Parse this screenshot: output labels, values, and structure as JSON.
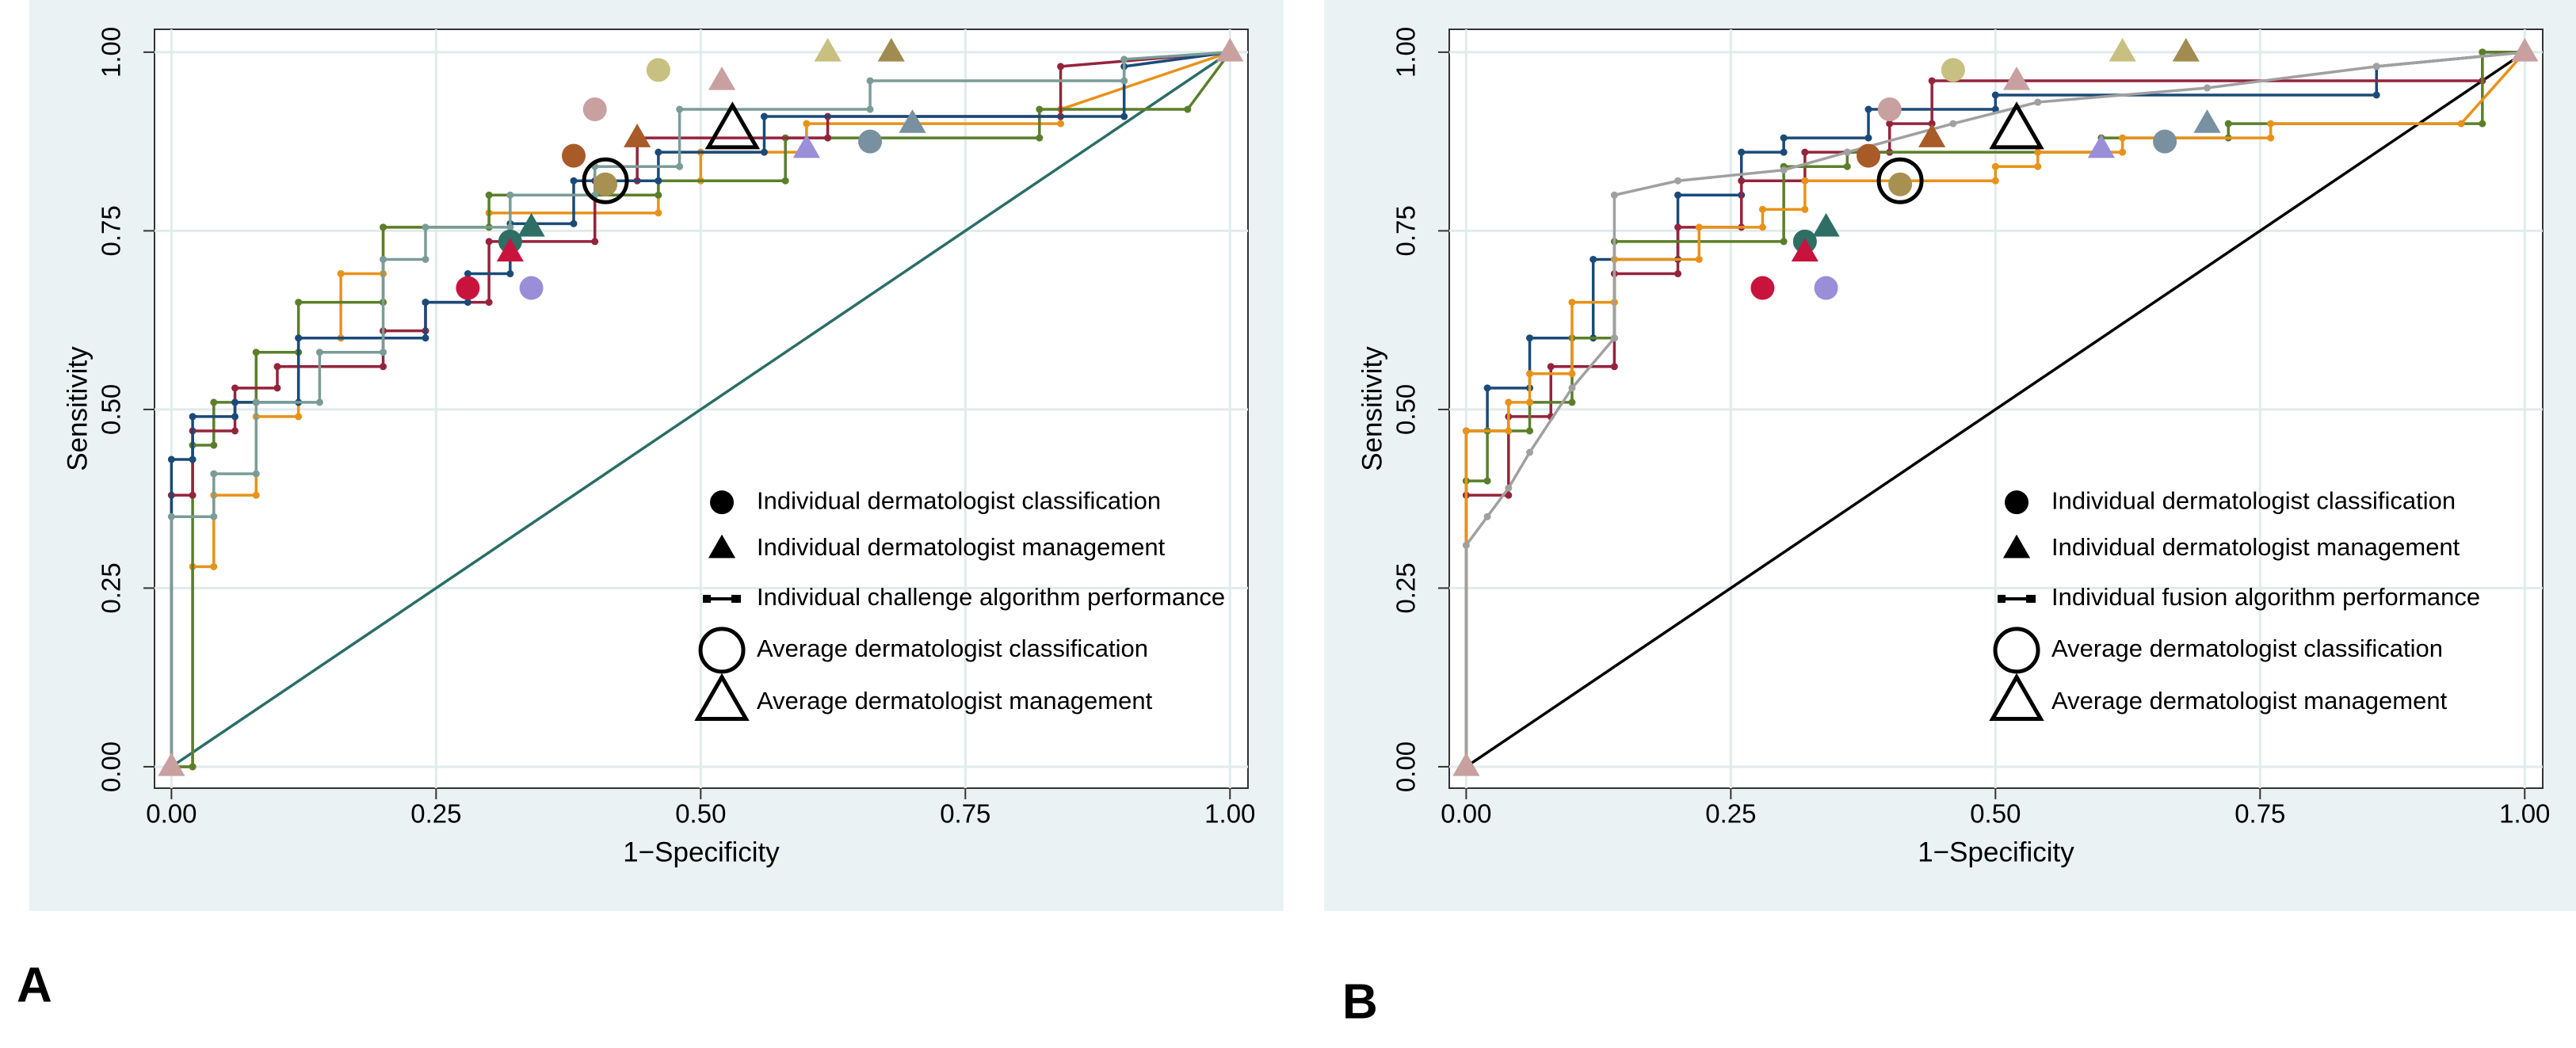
{
  "chart_data": [
    {
      "type": "line",
      "panel_label": "A",
      "xlabel": "1−Specificity",
      "ylabel": "Sensitivity",
      "grid": true,
      "xlim": [
        -0.016,
        1.017
      ],
      "ylim": [
        -0.03,
        1.032
      ],
      "xticks": [
        {
          "value": 0,
          "label": "0.00"
        },
        {
          "value": 0.25,
          "label": "0.25"
        },
        {
          "value": 0.5,
          "label": "0.50"
        },
        {
          "value": 0.75,
          "label": "0.75"
        },
        {
          "value": 1,
          "label": "1.00"
        }
      ],
      "yticks": [
        {
          "value": 0,
          "label": "0.00"
        },
        {
          "value": 0.25,
          "label": "0.25"
        },
        {
          "value": 0.5,
          "label": "0.50"
        },
        {
          "value": 0.75,
          "label": "0.75"
        },
        {
          "value": 1,
          "label": "1.00"
        }
      ],
      "reference_line": {
        "color": "#2a6e66",
        "x": [
          0,
          1
        ],
        "values": [
          0,
          1
        ]
      },
      "series": [
        {
          "color": "#e8921a",
          "x": [
            0,
            0.02,
            0.02,
            0.04,
            0.04,
            0.08,
            0.08,
            0.12,
            0.12,
            0.16,
            0.16,
            0.2,
            0.2,
            0.3,
            0.3,
            0.46,
            0.46,
            0.5,
            0.5,
            0.6,
            0.6,
            0.84,
            0.84,
            1
          ],
          "values": [
            0,
            0,
            0.28,
            0.28,
            0.38,
            0.38,
            0.49,
            0.49,
            0.6,
            0.6,
            0.69,
            0.69,
            0.755,
            0.755,
            0.775,
            0.775,
            0.82,
            0.82,
            0.86,
            0.86,
            0.9,
            0.9,
            0.92,
            1
          ]
        },
        {
          "color": "#5a7f2b",
          "x": [
            0,
            0.02,
            0.02,
            0.04,
            0.04,
            0.08,
            0.08,
            0.12,
            0.12,
            0.2,
            0.2,
            0.3,
            0.3,
            0.46,
            0.46,
            0.58,
            0.58,
            0.82,
            0.82,
            0.96,
            1
          ],
          "values": [
            0,
            0,
            0.45,
            0.45,
            0.51,
            0.51,
            0.58,
            0.58,
            0.65,
            0.65,
            0.755,
            0.755,
            0.8,
            0.8,
            0.82,
            0.82,
            0.88,
            0.88,
            0.92,
            0.92,
            1
          ]
        },
        {
          "color": "#94243c",
          "x": [
            0,
            0,
            0.02,
            0.02,
            0.06,
            0.06,
            0.1,
            0.1,
            0.2,
            0.2,
            0.24,
            0.24,
            0.3,
            0.3,
            0.4,
            0.4,
            0.44,
            0.44,
            0.62,
            0.62,
            0.84,
            0.84,
            1
          ],
          "values": [
            0,
            0.38,
            0.38,
            0.47,
            0.47,
            0.53,
            0.53,
            0.56,
            0.56,
            0.61,
            0.61,
            0.65,
            0.65,
            0.735,
            0.735,
            0.82,
            0.82,
            0.88,
            0.88,
            0.91,
            0.91,
            0.98,
            1
          ]
        },
        {
          "color": "#1a4a78",
          "x": [
            0,
            0,
            0.02,
            0.02,
            0.06,
            0.06,
            0.12,
            0.12,
            0.24,
            0.24,
            0.28,
            0.28,
            0.32,
            0.32,
            0.38,
            0.38,
            0.46,
            0.46,
            0.56,
            0.56,
            0.9,
            0.9,
            1
          ],
          "values": [
            0,
            0.43,
            0.43,
            0.49,
            0.49,
            0.51,
            0.51,
            0.6,
            0.6,
            0.65,
            0.65,
            0.69,
            0.69,
            0.76,
            0.76,
            0.82,
            0.82,
            0.86,
            0.86,
            0.91,
            0.91,
            0.98,
            1
          ]
        },
        {
          "color": "#7a9c98",
          "x": [
            0,
            0,
            0.04,
            0.04,
            0.08,
            0.08,
            0.14,
            0.14,
            0.2,
            0.2,
            0.24,
            0.24,
            0.32,
            0.32,
            0.4,
            0.4,
            0.48,
            0.48,
            0.66,
            0.66,
            0.9,
            0.9,
            1
          ],
          "values": [
            0,
            0.35,
            0.35,
            0.41,
            0.41,
            0.51,
            0.51,
            0.58,
            0.58,
            0.71,
            0.71,
            0.755,
            0.755,
            0.8,
            0.8,
            0.84,
            0.84,
            0.92,
            0.92,
            0.96,
            0.96,
            0.99,
            1
          ]
        }
      ],
      "markers": {
        "x": [
          0.28,
          0.32,
          0.34,
          0.38,
          0.4,
          0.41,
          0.46,
          0.66,
          0.32,
          0.34,
          0.44,
          0.52,
          0.6,
          0.62,
          0.68,
          0.7,
          0,
          1
        ],
        "values": [
          0.67,
          0.735,
          0.67,
          0.855,
          0.92,
          0.815,
          0.975,
          0.875,
          0.72,
          0.755,
          0.88,
          0.96,
          0.865,
          1,
          1,
          0.9,
          0,
          1
        ],
        "shapes": [
          "circle",
          "circle",
          "circle",
          "circle",
          "circle",
          "circle",
          "circle",
          "circle",
          "triangle",
          "triangle",
          "triangle",
          "triangle",
          "triangle",
          "triangle",
          "triangle",
          "triangle",
          "triangle",
          "triangle"
        ],
        "colors": [
          "#c8143c",
          "#2e6e64",
          "#9a8ed8",
          "#a85a28",
          "#c8a0a0",
          "#a89050",
          "#c8c080",
          "#7890a0",
          "#c8143c",
          "#2e6e64",
          "#a85a28",
          "#c8a0a0",
          "#9a8ed8",
          "#c8c080",
          "#a08c50",
          "#7890a0",
          "#c8a0a0",
          "#c8a0a0"
        ]
      },
      "average_markers": {
        "x": [
          0.41,
          0.53
        ],
        "values": [
          0.82,
          0.89
        ],
        "shapes": [
          "open-circle",
          "open-triangle"
        ]
      },
      "legend": {
        "labels": [
          "Individual dermatologist classification",
          "Individual dermatologist management",
          "Individual challenge algorithm performance",
          "Average dermatologist classification",
          "Average dermatologist management"
        ],
        "shapes": [
          "circle",
          "triangle",
          "line-dot",
          "open-circle",
          "open-triangle"
        ]
      }
    },
    {
      "type": "line",
      "panel_label": "B",
      "xlabel": "1−Specificity",
      "ylabel": "Sensitivity",
      "grid": true,
      "xlim": [
        -0.016,
        1.017
      ],
      "ylim": [
        -0.03,
        1.032
      ],
      "xticks": [
        {
          "value": 0,
          "label": "0.00"
        },
        {
          "value": 0.25,
          "label": "0.25"
        },
        {
          "value": 0.5,
          "label": "0.50"
        },
        {
          "value": 0.75,
          "label": "0.75"
        },
        {
          "value": 1,
          "label": "1.00"
        }
      ],
      "yticks": [
        {
          "value": 0,
          "label": "0.00"
        },
        {
          "value": 0.25,
          "label": "0.25"
        },
        {
          "value": 0.5,
          "label": "0.50"
        },
        {
          "value": 0.75,
          "label": "0.75"
        },
        {
          "value": 1,
          "label": "1.00"
        }
      ],
      "reference_line": {
        "color": "#000000",
        "x": [
          0,
          1
        ],
        "values": [
          0,
          1
        ]
      },
      "series": [
        {
          "color": "#1a4a78",
          "x": [
            0,
            0,
            0.02,
            0.02,
            0.06,
            0.06,
            0.12,
            0.12,
            0.2,
            0.2,
            0.26,
            0.26,
            0.3,
            0.3,
            0.38,
            0.38,
            0.5,
            0.5,
            0.86,
            0.86,
            1
          ],
          "values": [
            0,
            0.47,
            0.47,
            0.53,
            0.53,
            0.6,
            0.6,
            0.71,
            0.71,
            0.8,
            0.8,
            0.86,
            0.86,
            0.88,
            0.88,
            0.92,
            0.92,
            0.94,
            0.94,
            0.98,
            1
          ]
        },
        {
          "color": "#94243c",
          "x": [
            0,
            0,
            0.04,
            0.04,
            0.08,
            0.08,
            0.14,
            0.14,
            0.2,
            0.2,
            0.26,
            0.26,
            0.32,
            0.32,
            0.4,
            0.4,
            0.44,
            0.44,
            0.96,
            0.96,
            1
          ],
          "values": [
            0,
            0.38,
            0.38,
            0.49,
            0.49,
            0.56,
            0.56,
            0.69,
            0.69,
            0.755,
            0.755,
            0.82,
            0.82,
            0.86,
            0.86,
            0.9,
            0.9,
            0.96,
            0.96,
            1,
            1
          ]
        },
        {
          "color": "#5a7f2b",
          "x": [
            0,
            0,
            0.02,
            0.02,
            0.06,
            0.06,
            0.1,
            0.1,
            0.14,
            0.14,
            0.3,
            0.3,
            0.36,
            0.36,
            0.6,
            0.6,
            0.72,
            0.72,
            0.96,
            0.96,
            1
          ],
          "values": [
            0,
            0.4,
            0.4,
            0.47,
            0.47,
            0.51,
            0.51,
            0.6,
            0.6,
            0.735,
            0.735,
            0.84,
            0.84,
            0.86,
            0.86,
            0.88,
            0.88,
            0.9,
            0.9,
            1,
            1
          ]
        },
        {
          "color": "#e8921a",
          "x": [
            0,
            0,
            0.04,
            0.04,
            0.06,
            0.06,
            0.1,
            0.1,
            0.14,
            0.14,
            0.22,
            0.22,
            0.28,
            0.28,
            0.32,
            0.32,
            0.5,
            0.5,
            0.54,
            0.54,
            0.62,
            0.62,
            0.76,
            0.76,
            0.94,
            1
          ],
          "values": [
            0,
            0.47,
            0.47,
            0.51,
            0.51,
            0.55,
            0.55,
            0.65,
            0.65,
            0.71,
            0.71,
            0.755,
            0.755,
            0.78,
            0.78,
            0.82,
            0.82,
            0.84,
            0.84,
            0.86,
            0.86,
            0.88,
            0.88,
            0.9,
            0.9,
            1
          ]
        },
        {
          "color": "#a0a0a0",
          "x": [
            0,
            0,
            0.02,
            0.04,
            0.06,
            0.1,
            0.14,
            0.14,
            0.2,
            0.3,
            0.36,
            0.46,
            0.54,
            0.7,
            0.86,
            1
          ],
          "values": [
            0,
            0.31,
            0.35,
            0.39,
            0.44,
            0.53,
            0.6,
            0.8,
            0.82,
            0.835,
            0.86,
            0.9,
            0.93,
            0.95,
            0.98,
            1
          ]
        }
      ],
      "markers": {
        "x": [
          0.28,
          0.32,
          0.34,
          0.38,
          0.4,
          0.41,
          0.46,
          0.66,
          0.32,
          0.34,
          0.44,
          0.52,
          0.6,
          0.62,
          0.68,
          0.7,
          0,
          1
        ],
        "values": [
          0.67,
          0.735,
          0.67,
          0.855,
          0.92,
          0.815,
          0.975,
          0.875,
          0.72,
          0.755,
          0.88,
          0.96,
          0.865,
          1,
          1,
          0.9,
          0,
          1
        ],
        "shapes": [
          "circle",
          "circle",
          "circle",
          "circle",
          "circle",
          "circle",
          "circle",
          "circle",
          "triangle",
          "triangle",
          "triangle",
          "triangle",
          "triangle",
          "triangle",
          "triangle",
          "triangle",
          "triangle",
          "triangle"
        ],
        "colors": [
          "#c8143c",
          "#2e6e64",
          "#9a8ed8",
          "#a85a28",
          "#c8a0a0",
          "#a89050",
          "#c8c080",
          "#7890a0",
          "#c8143c",
          "#2e6e64",
          "#a85a28",
          "#c8a0a0",
          "#9a8ed8",
          "#c8c080",
          "#a08c50",
          "#7890a0",
          "#c8a0a0",
          "#c8a0a0"
        ]
      },
      "average_markers": {
        "x": [
          0.41,
          0.52
        ],
        "values": [
          0.82,
          0.89
        ],
        "shapes": [
          "open-circle",
          "open-triangle"
        ]
      },
      "legend": {
        "labels": [
          "Individual dermatologist classification",
          "Individual dermatologist management",
          "Individual fusion algorithm performance",
          "Average dermatologist classification",
          "Average dermatologist management"
        ],
        "shapes": [
          "circle",
          "triangle",
          "line-dot",
          "open-circle",
          "open-triangle"
        ]
      }
    }
  ]
}
